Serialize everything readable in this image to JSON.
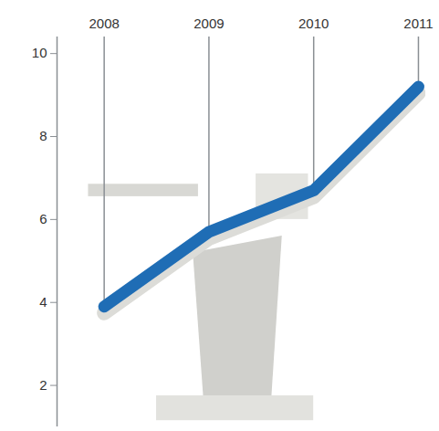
{
  "chart_data": {
    "type": "line",
    "x": [
      2008,
      2009,
      2010,
      2011
    ],
    "values": [
      3.9,
      5.7,
      6.7,
      9.2
    ],
    "color": "#1f6db5",
    "xlim": [
      2007.55,
      2011.07
    ],
    "xticks": [
      2008,
      2009,
      2010,
      2011
    ],
    "ylim": [
      1,
      10.4
    ],
    "yticks": [
      2,
      4,
      6,
      8,
      10
    ],
    "grid": false
  }
}
